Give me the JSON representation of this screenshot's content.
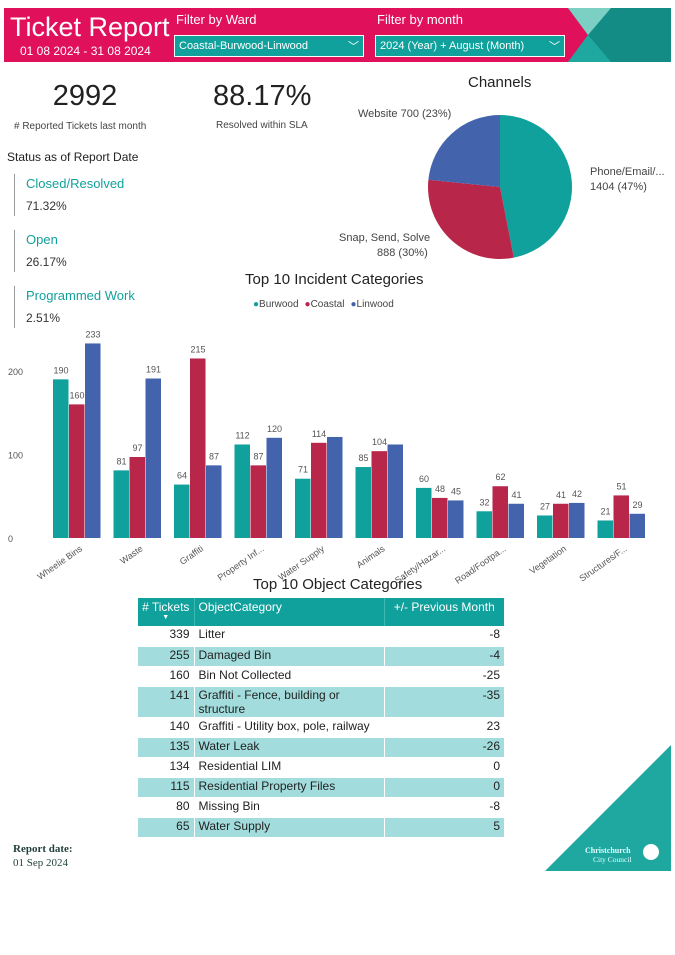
{
  "header": {
    "title": "Ticket Report",
    "date_range": "01 08 2024 - 31 08 2024",
    "ward_filter_label": "Filter by Ward",
    "ward_filter_value": "Coastal-Burwood-Linwood",
    "month_filter_label": "Filter by month",
    "month_filter_value": "2024 (Year) + August (Month)"
  },
  "kpis": [
    {
      "value": "2992",
      "label": "# Reported Tickets last month"
    },
    {
      "value": "88.17%",
      "label": "Resolved within SLA"
    }
  ],
  "status": {
    "title": "Status as of Report Date",
    "items": [
      {
        "label": "Closed/Resolved",
        "value": "71.32%"
      },
      {
        "label": "Open",
        "value": "26.17%"
      },
      {
        "label": "Programmed Work",
        "value": "2.51%"
      }
    ]
  },
  "colors": {
    "brand": "#e0105a",
    "teal": "#11a19c",
    "red": "#b8264a",
    "blue": "#4463ad"
  },
  "chart_data": [
    {
      "type": "pie",
      "title": "Channels",
      "slices": [
        {
          "label": "Phone/Email/...",
          "value": 1404,
          "pct": "47%",
          "text": "1404 (47%)"
        },
        {
          "label": "Snap, Send, Solve",
          "value": 888,
          "pct": "30%",
          "text": "888 (30%)"
        },
        {
          "label": "Website",
          "value": 700,
          "pct": "23%",
          "text": "Website 700 (23%)"
        }
      ]
    },
    {
      "type": "bar",
      "title": "Top 10 Incident Categories",
      "categories": [
        "Wheelie Bins",
        "Waste",
        "Graffiti",
        "Property Inf...",
        "Water Supply",
        "Animals",
        "Safety/Hazar...",
        "Road/Footpa...",
        "Vegetation",
        "Structures/F..."
      ],
      "series": [
        {
          "name": "Burwood",
          "values": [
            190,
            81,
            64,
            112,
            71,
            85,
            60,
            32,
            27,
            21
          ],
          "labels": [
            "190",
            "81",
            "64",
            "112",
            "71",
            "85",
            "60",
            "32",
            "27",
            "21"
          ]
        },
        {
          "name": "Coastal",
          "values": [
            160,
            97,
            215,
            87,
            114,
            104,
            48,
            62,
            41,
            51
          ],
          "labels": [
            "160",
            "97",
            "215",
            "87",
            "114",
            "104",
            "48",
            "62",
            "41",
            "51"
          ]
        },
        {
          "name": "Linwood",
          "values": [
            233,
            191,
            87,
            120,
            121,
            112,
            45,
            41,
            42,
            29
          ],
          "labels": [
            "233",
            "191",
            "87",
            "120",
            "",
            "",
            "45",
            "41",
            "42",
            "29"
          ]
        }
      ],
      "yticks": [
        "0",
        "100",
        "200"
      ],
      "ylim": [
        0,
        240
      ]
    }
  ],
  "table": {
    "title": "Top 10 Object Categories",
    "columns": [
      "# Tickets",
      "ObjectCategory",
      "+/- Previous Month"
    ],
    "rows": [
      [
        "339",
        "Litter",
        "-8"
      ],
      [
        "255",
        "Damaged Bin",
        "-4"
      ],
      [
        "160",
        "Bin Not Collected",
        "-25"
      ],
      [
        "141",
        "Graffiti - Fence, building or structure",
        "-35"
      ],
      [
        "140",
        "Graffiti - Utility box, pole, railway",
        "23"
      ],
      [
        "135",
        "Water Leak",
        "-26"
      ],
      [
        "134",
        "Residential LIM",
        "0"
      ],
      [
        "115",
        "Residential Property Files",
        "0"
      ],
      [
        "80",
        "Missing Bin",
        "-8"
      ],
      [
        "65",
        "Water Supply",
        "5"
      ]
    ]
  },
  "footer": {
    "report_date_label": "Report date:",
    "report_date": "01 Sep 2024",
    "logo_text": "Christchurch City Council"
  }
}
